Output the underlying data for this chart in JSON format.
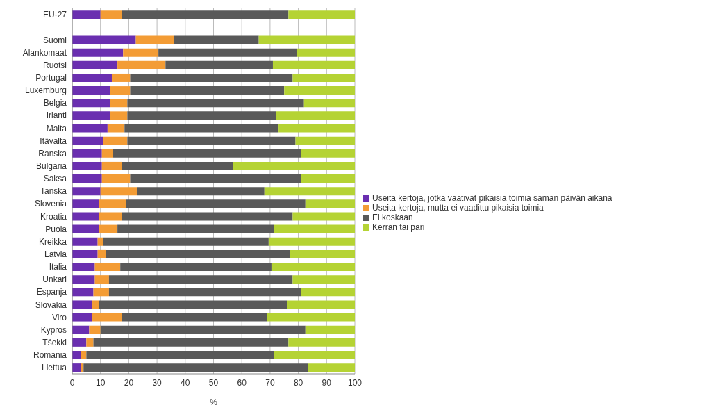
{
  "chart_data": {
    "type": "bar",
    "orientation": "horizontal",
    "stacked": true,
    "xlabel": "%",
    "categories": [
      "EU-27",
      null,
      "Suomi",
      "Alankomaat",
      "Ruotsi",
      "Portugal",
      "Luxemburg",
      "Belgia",
      "Irlanti",
      "Malta",
      "Itävalta",
      "Ranska",
      "Bulgaria",
      "Saksa",
      "Tanska",
      "Slovenia",
      "Kroatia",
      "Puola",
      "Kreikka",
      "Latvia",
      "Italia",
      "Unkari",
      "Espanja",
      "Slovakia",
      "Viro",
      "Kypros",
      "Tšekki",
      "Romania",
      "Liettua"
    ],
    "series": [
      {
        "name": "Useita kertoja, jotka vaativat pikaisia toimia saman päivän aikana",
        "color": "#6a2fb0",
        "values": [
          10,
          null,
          22.5,
          18,
          16,
          14,
          13.5,
          13.5,
          13.5,
          12.5,
          11,
          10.5,
          10.5,
          10.5,
          10,
          9.5,
          9.5,
          9.5,
          9,
          9,
          8,
          8,
          7.5,
          7,
          7,
          6,
          5,
          3,
          3
        ]
      },
      {
        "name": "Useita kertoja, mutta ei vaadittu pikaisia toimia",
        "color": "#f39c35",
        "values": [
          7.5,
          null,
          13.5,
          12.5,
          17,
          6.5,
          7,
          6,
          6,
          6,
          8.5,
          4,
          7,
          10,
          13,
          9.5,
          8,
          6.5,
          2,
          3,
          9,
          5,
          5.5,
          2.5,
          10.5,
          4,
          2.5,
          2,
          1
        ]
      },
      {
        "name": "Ei koskaan",
        "color": "#595959",
        "values": [
          59,
          null,
          30,
          49,
          38,
          57.5,
          54.5,
          62.5,
          52.5,
          54.5,
          59.5,
          66.5,
          39.5,
          60.5,
          45,
          63.5,
          60.5,
          55.5,
          58.5,
          65,
          53.5,
          65,
          68,
          66.5,
          51.5,
          72.5,
          69,
          66.5,
          79.5
        ]
      },
      {
        "name": "Kerran tai pari",
        "color": "#b5d334",
        "values": [
          23.5,
          null,
          34,
          20.5,
          29,
          22,
          25,
          18,
          28,
          27,
          21,
          19,
          43,
          19,
          32,
          17.5,
          22,
          28.5,
          30.5,
          23,
          29.5,
          22,
          19,
          24,
          31,
          17.5,
          23.5,
          28.5,
          16.5
        ]
      }
    ],
    "xlim": [
      0,
      100
    ],
    "xticks": [
      0,
      10,
      20,
      30,
      40,
      50,
      60,
      70,
      80,
      90,
      100
    ],
    "grid": "x",
    "legend": "right"
  }
}
